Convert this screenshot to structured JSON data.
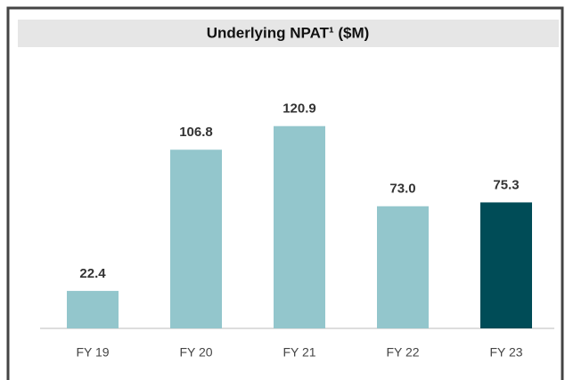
{
  "chart_data": {
    "type": "bar",
    "title": "Underlying NPAT¹ ($M)",
    "categories": [
      "FY 19",
      "FY 20",
      "FY 21",
      "FY 22",
      "FY 23"
    ],
    "values": [
      22.4,
      106.8,
      120.9,
      73.0,
      75.3
    ],
    "value_labels": [
      "22.4",
      "106.8",
      "120.9",
      "73.0",
      "75.3"
    ],
    "colors": [
      "#93c6cc",
      "#93c6cc",
      "#93c6cc",
      "#93c6cc",
      "#004c57"
    ]
  }
}
